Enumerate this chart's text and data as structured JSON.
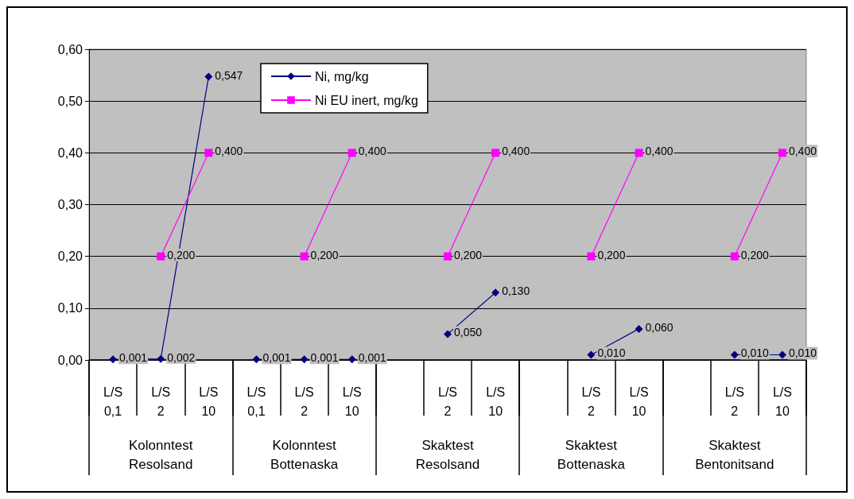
{
  "chart_data": {
    "type": "line",
    "categories": [
      "L/S 0,1",
      "L/S 2",
      "L/S 10",
      "L/S 0,1",
      "L/S 2",
      "L/S 10",
      null,
      "L/S 2",
      "L/S 10",
      null,
      "L/S 2",
      "L/S 10",
      null,
      "L/S 2",
      "L/S 10"
    ],
    "annotations": [
      "Kolonntest Resolsand",
      "Kolonntest Bottenaska",
      "Skaktest Resolsand",
      "Skaktest Bottenaska",
      "Skaktest Bentonitsand"
    ],
    "series": [
      {
        "name": "Ni, mg/kg",
        "color": "#000080",
        "marker": "diamond",
        "values": [
          0.001,
          0.002,
          0.547,
          0.001,
          0.001,
          0.001,
          null,
          0.05,
          0.13,
          null,
          0.01,
          0.06,
          null,
          0.01,
          0.01
        ],
        "value_labels": [
          "0,001",
          "0,002",
          "0,547",
          "0,001",
          "0,001",
          "0,001",
          null,
          "0,050",
          "0,130",
          null,
          "0,010",
          "0,060",
          null,
          "0,010",
          "0,010"
        ]
      },
      {
        "name": "Ni EU inert, mg/kg",
        "color": "#ff00ff",
        "marker": "square",
        "values": [
          null,
          0.2,
          0.4,
          null,
          0.2,
          0.4,
          null,
          0.2,
          0.4,
          null,
          0.2,
          0.4,
          null,
          0.2,
          0.4
        ],
        "value_labels": [
          null,
          "0,200",
          "0,400",
          null,
          "0,200",
          "0,400",
          null,
          "0,200",
          "0,400",
          null,
          "0,200",
          "0,400",
          null,
          "0,200",
          "0,400"
        ]
      }
    ],
    "ylim": [
      0,
      0.6
    ],
    "yticks": [
      {
        "value": 0,
        "label": "0,00"
      },
      {
        "value": 0.1,
        "label": "0,10"
      },
      {
        "value": 0.2,
        "label": "0,20"
      },
      {
        "value": 0.3,
        "label": "0,30"
      },
      {
        "value": 0.4,
        "label": "0,40"
      },
      {
        "value": 0.5,
        "label": "0,50"
      },
      {
        "value": 0.6,
        "label": "0,60"
      }
    ],
    "grid": "y",
    "legend": "top"
  }
}
